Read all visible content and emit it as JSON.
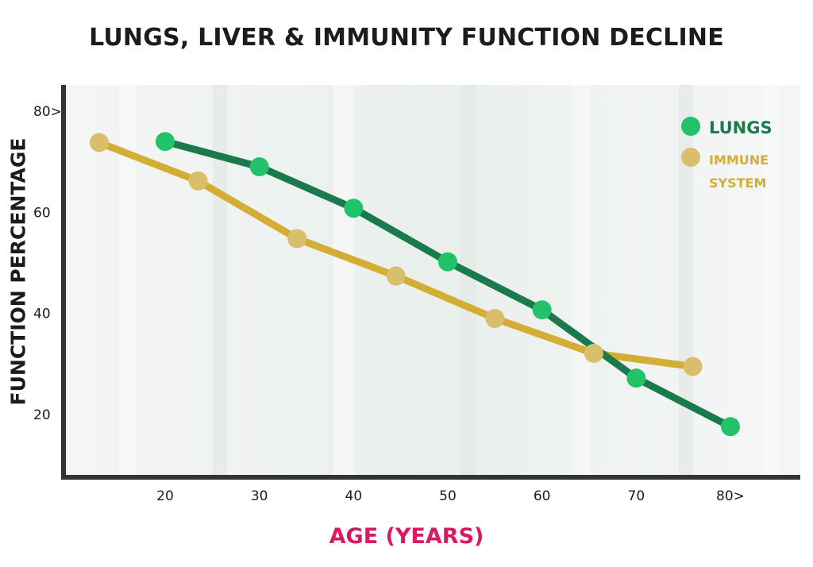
{
  "chart_data": {
    "type": "line",
    "title": "LUNGS, LIVER & IMMUNITY FUNCTION DECLINE",
    "xlabel": "AGE (YEARS)",
    "ylabel": "FUNCTION PERCENTAGE",
    "xlim": [
      10,
      85
    ],
    "ylim": [
      10,
      82
    ],
    "x_ticks": [
      20,
      30,
      40,
      50,
      60,
      70,
      80
    ],
    "x_tick_labels": [
      "20",
      "30",
      "40",
      "50",
      "60",
      "70",
      "80>"
    ],
    "y_ticks": [
      20,
      40,
      60,
      80
    ],
    "y_tick_labels": [
      "20",
      "40",
      "60",
      "80>"
    ],
    "grid": false,
    "legend_position": "top-right",
    "series": [
      {
        "name": "LUNGS",
        "color": "#1a7a4c",
        "marker_color": "#22c269",
        "x": [
          20,
          30,
          40,
          50,
          60,
          70,
          80
        ],
        "y": [
          74,
          69,
          60.8,
          50.2,
          40.7,
          27.2,
          17.6
        ]
      },
      {
        "name": "IMMUNE SYSTEM",
        "color": "#d4ad35",
        "marker_color": "#d9be6c",
        "x": [
          13,
          23.5,
          34,
          44.5,
          55,
          65.5,
          76
        ],
        "y": [
          73.8,
          66.2,
          54.8,
          47.4,
          39,
          32.1,
          29.5
        ]
      }
    ]
  }
}
